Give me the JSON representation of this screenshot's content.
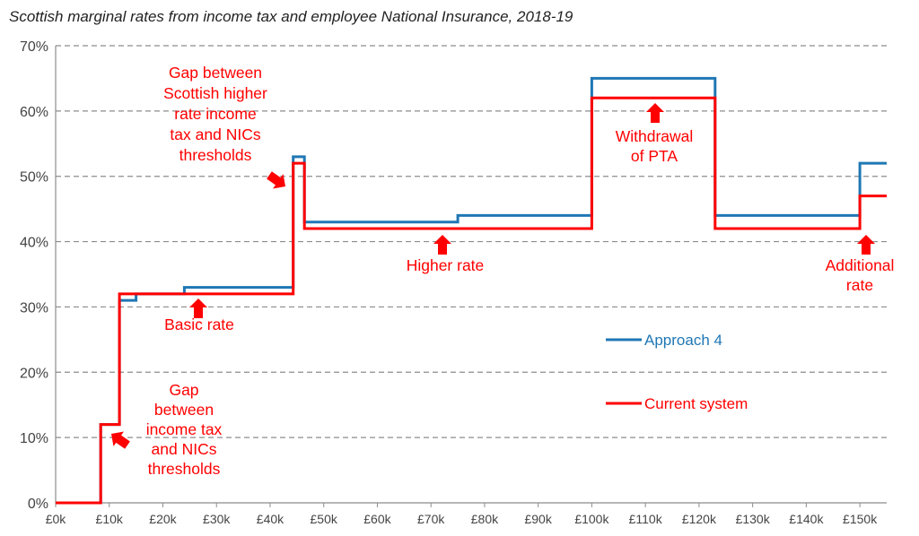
{
  "chart_data": {
    "type": "line",
    "title": "Scottish marginal rates from income tax and employee National Insurance, 2018-19",
    "xlabel": "",
    "ylabel": "",
    "xlim": [
      0,
      155
    ],
    "ylim": [
      0,
      70
    ],
    "x_ticks": [
      {
        "v": 0,
        "label": "£0k"
      },
      {
        "v": 10,
        "label": "£10k"
      },
      {
        "v": 20,
        "label": "£20k"
      },
      {
        "v": 30,
        "label": "£30k"
      },
      {
        "v": 40,
        "label": "£40k"
      },
      {
        "v": 50,
        "label": "£50k"
      },
      {
        "v": 60,
        "label": "£60k"
      },
      {
        "v": 70,
        "label": "£70k"
      },
      {
        "v": 80,
        "label": "£80k"
      },
      {
        "v": 90,
        "label": "£90k"
      },
      {
        "v": 100,
        "label": "£100k"
      },
      {
        "v": 110,
        "label": "£110k"
      },
      {
        "v": 120,
        "label": "£120k"
      },
      {
        "v": 130,
        "label": "£130k"
      },
      {
        "v": 140,
        "label": "£140k"
      },
      {
        "v": 150,
        "label": "£150k"
      }
    ],
    "y_ticks": [
      {
        "v": 0,
        "label": "0%"
      },
      {
        "v": 10,
        "label": "10%"
      },
      {
        "v": 20,
        "label": "20%"
      },
      {
        "v": 30,
        "label": "30%"
      },
      {
        "v": 40,
        "label": "40%"
      },
      {
        "v": 50,
        "label": "50%"
      },
      {
        "v": 60,
        "label": "60%"
      },
      {
        "v": 70,
        "label": "70%"
      }
    ],
    "grid": "horizontal-dashed",
    "series": [
      {
        "name": "Approach 4",
        "color": "#1f77b4",
        "step_points": [
          [
            0,
            0
          ],
          [
            8.4,
            0
          ],
          [
            8.4,
            12
          ],
          [
            11.9,
            12
          ],
          [
            11.9,
            31
          ],
          [
            15,
            31
          ],
          [
            15,
            32
          ],
          [
            24,
            32
          ],
          [
            24,
            33
          ],
          [
            44.3,
            33
          ],
          [
            44.3,
            53
          ],
          [
            46.4,
            53
          ],
          [
            46.4,
            43
          ],
          [
            75,
            43
          ],
          [
            75,
            44
          ],
          [
            100,
            44
          ],
          [
            100,
            65
          ],
          [
            123,
            65
          ],
          [
            123,
            44
          ],
          [
            150,
            44
          ],
          [
            150,
            52
          ],
          [
            155,
            52
          ]
        ]
      },
      {
        "name": "Current system",
        "color": "#ff0000",
        "step_points": [
          [
            0,
            0
          ],
          [
            8.4,
            0
          ],
          [
            8.4,
            12
          ],
          [
            11.9,
            12
          ],
          [
            11.9,
            32
          ],
          [
            44.3,
            32
          ],
          [
            44.3,
            52
          ],
          [
            46.4,
            52
          ],
          [
            46.4,
            42
          ],
          [
            100,
            42
          ],
          [
            100,
            62
          ],
          [
            123,
            62
          ],
          [
            123,
            42
          ],
          [
            150,
            42
          ],
          [
            150,
            47
          ],
          [
            155,
            47
          ]
        ]
      }
    ],
    "legend_position": "right-middle",
    "annotations": [
      {
        "lines": [
          "Gap",
          "between",
          "income tax",
          "and NICs",
          "thresholds"
        ]
      },
      {
        "lines": [
          "Basic rate"
        ]
      },
      {
        "lines": [
          "Gap between",
          "Scottish higher",
          "rate income",
          "tax and NICs",
          "thresholds"
        ]
      },
      {
        "lines": [
          "Higher rate"
        ]
      },
      {
        "lines": [
          "Withdrawal",
          "of PTA"
        ]
      },
      {
        "lines": [
          "Additional",
          "rate"
        ]
      }
    ]
  }
}
